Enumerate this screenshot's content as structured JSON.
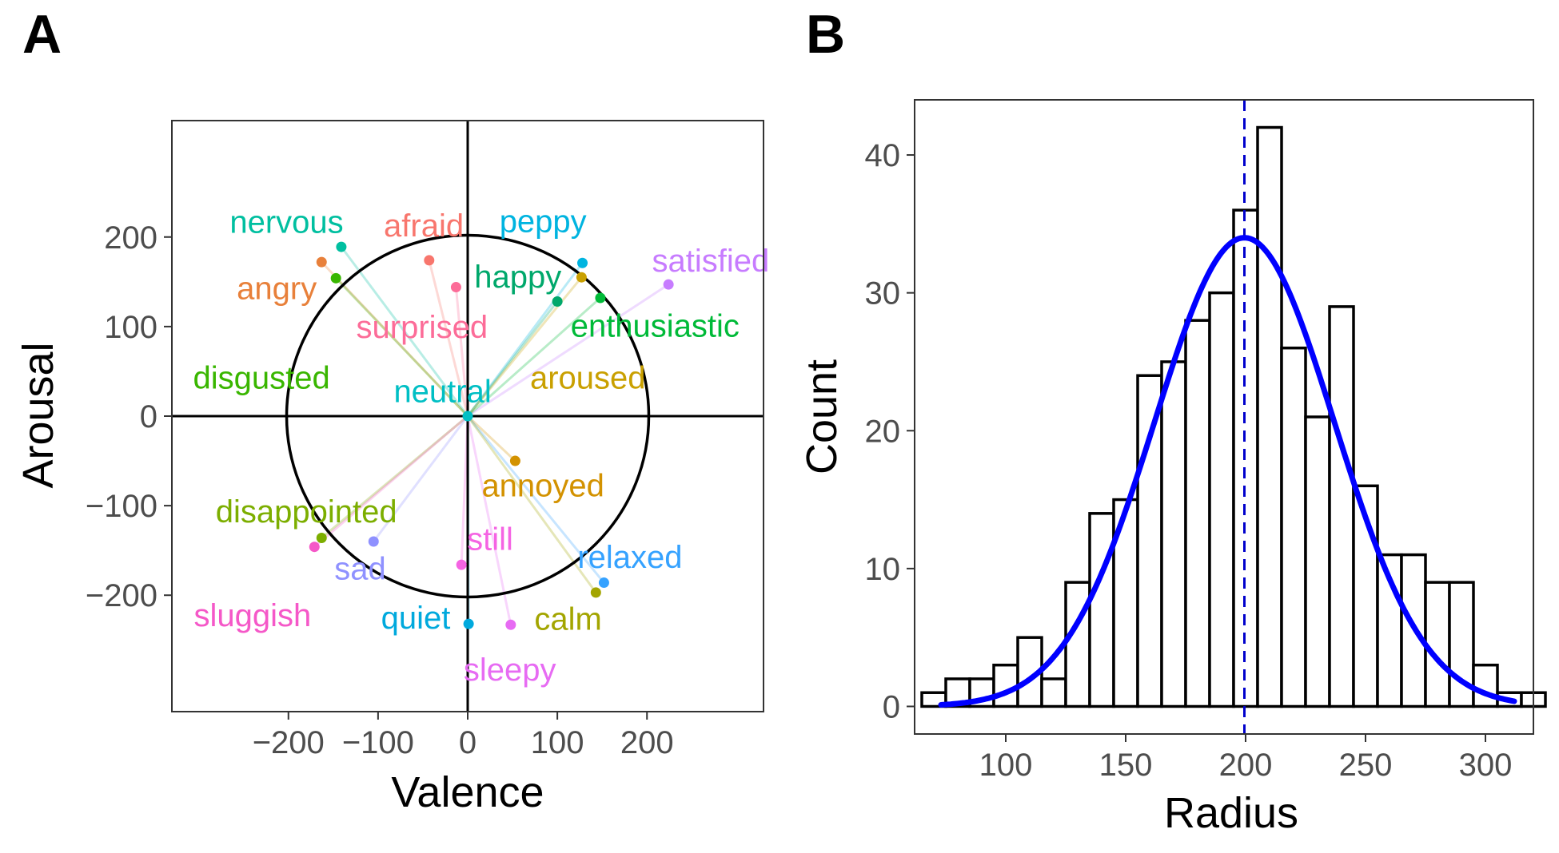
{
  "chart_data": [
    {
      "type": "scatter",
      "panel_label": "A",
      "xlabel": "Valence",
      "ylabel": "Arousal",
      "xlim": [
        -330,
        330
      ],
      "ylim": [
        -330,
        330
      ],
      "xticks": [
        -200,
        -100,
        0,
        100,
        200
      ],
      "yticks": [
        -200,
        -100,
        0,
        100,
        200
      ],
      "tick_labels_x": [
        "−200",
        "−100",
        "0",
        "100",
        "200"
      ],
      "tick_labels_y": [
        "−200",
        "−100",
        "0",
        "100",
        "200"
      ],
      "circle_radius": 202,
      "grid": false,
      "points": [
        {
          "label": "nervous",
          "x": -141,
          "y": 189,
          "color": "#00BFA0",
          "lx": -202,
          "ly": 214
        },
        {
          "label": "afraid",
          "x": -43,
          "y": 174,
          "color": "#F8766D",
          "lx": -49,
          "ly": 210
        },
        {
          "label": "peppy",
          "x": 128,
          "y": 171,
          "color": "#00B4E0",
          "lx": 84,
          "ly": 215
        },
        {
          "label": "satisfied",
          "x": 224,
          "y": 147,
          "color": "#C77CFF",
          "lx": 271,
          "ly": 171
        },
        {
          "label": "angry",
          "x": -163,
          "y": 172,
          "color": "#E8803A",
          "lx": -213,
          "ly": 140
        },
        {
          "label": "happy",
          "x": 100,
          "y": 128,
          "color": "#00A86B",
          "lx": 56,
          "ly": 153
        },
        {
          "label": "surprised",
          "x": -13,
          "y": 144,
          "color": "#FC6C98",
          "lx": -51,
          "ly": 97
        },
        {
          "label": "enthusiastic",
          "x": 148,
          "y": 132,
          "color": "#00BA38",
          "lx": 209,
          "ly": 98
        },
        {
          "label": "disgusted",
          "x": -147,
          "y": 154,
          "color": "#39B600",
          "lx": -230,
          "ly": 40
        },
        {
          "label": "aroused",
          "x": 127,
          "y": 155,
          "color": "#C9A000",
          "lx": 134,
          "ly": 40
        },
        {
          "label": "neutral",
          "x": 0,
          "y": 0,
          "color": "#00BFC4",
          "lx": -28,
          "ly": 25
        },
        {
          "label": "annoyed",
          "x": 53,
          "y": -50,
          "color": "#D39200",
          "lx": 84,
          "ly": -80
        },
        {
          "label": "disappointed",
          "x": -163,
          "y": -136,
          "color": "#7CAE00",
          "lx": -180,
          "ly": -109
        },
        {
          "label": "still",
          "x": -7,
          "y": -166,
          "color": "#F564E3",
          "lx": 25,
          "ly": -140
        },
        {
          "label": "relaxed",
          "x": 152,
          "y": -186,
          "color": "#35A2FF",
          "lx": 181,
          "ly": -160
        },
        {
          "label": "sad",
          "x": -105,
          "y": -140,
          "color": "#8F91FF",
          "lx": -120,
          "ly": -173
        },
        {
          "label": "sluggish",
          "x": -171,
          "y": -146,
          "color": "#F558C8",
          "lx": -240,
          "ly": -225
        },
        {
          "label": "quiet",
          "x": 1,
          "y": -232,
          "color": "#00A9DD",
          "lx": -58,
          "ly": -228
        },
        {
          "label": "calm",
          "x": 143,
          "y": -197,
          "color": "#A3A500",
          "lx": 112,
          "ly": -229
        },
        {
          "label": "sleepy",
          "x": 48,
          "y": -233,
          "color": "#E76BF3",
          "lx": 47,
          "ly": -286
        }
      ]
    },
    {
      "type": "bar",
      "panel_label": "B",
      "xlabel": "Radius",
      "ylabel": "Count",
      "xlim": [
        62,
        320
      ],
      "ylim": [
        -2,
        44
      ],
      "xticks": [
        100,
        150,
        200,
        250,
        300
      ],
      "yticks": [
        0,
        10,
        20,
        30,
        40
      ],
      "bin_width": 10,
      "bin_start": 65,
      "counts": [
        1,
        2,
        2,
        3,
        5,
        2,
        9,
        14,
        15,
        24,
        25,
        28,
        30,
        36,
        42,
        26,
        21,
        29,
        16,
        11,
        11,
        9,
        9,
        3,
        1,
        1
      ],
      "mean_line": 199.5,
      "normal_fit": {
        "mean": 199.5,
        "sd": 37.5,
        "peak": 34,
        "x_range": [
          73,
          312
        ]
      },
      "colors": {
        "fit": "#0000FF",
        "mean_line": "#0000CC",
        "bar_stroke": "#000000",
        "bar_fill": "#FFFFFF"
      },
      "grid": false
    }
  ]
}
